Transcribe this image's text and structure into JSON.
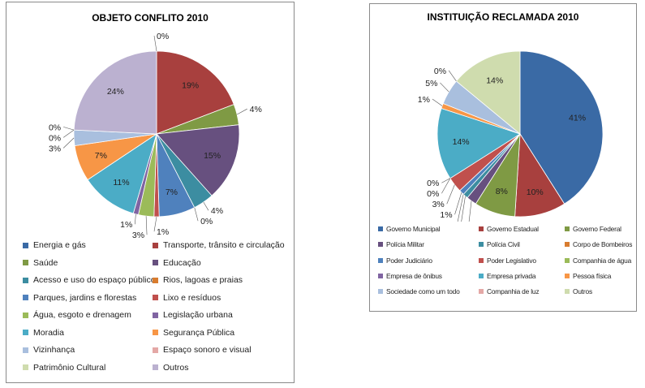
{
  "chart_data": [
    {
      "type": "pie",
      "title": "OBJETO CONFLITO 2010",
      "legend_position": "bottom",
      "slices": [
        {
          "label": "Energia e gás",
          "value": 0,
          "value_label": "0%",
          "color": "#3a6aa5"
        },
        {
          "label": "Transporte, trânsito e circulação",
          "value": 19,
          "value_label": "19%",
          "color": "#a8403e"
        },
        {
          "label": "Saúde",
          "value": 4,
          "value_label": "4%",
          "color": "#7f9a44"
        },
        {
          "label": "Educação",
          "value": 15,
          "value_label": "15%",
          "color": "#67507f"
        },
        {
          "label": "Acesso e uso do espaço público",
          "value": 4,
          "value_label": "4%",
          "color": "#3c8da1"
        },
        {
          "label": "Rios, lagoas e praias",
          "value": 0,
          "value_label": "0%",
          "color": "#d87c2f"
        },
        {
          "label": "Parques, jardins e florestas",
          "value": 7,
          "value_label": "7%",
          "color": "#4f81bd"
        },
        {
          "label": "Lixo e resíduos",
          "value": 1,
          "value_label": "1%",
          "color": "#c0504d"
        },
        {
          "label": "Água, esgoto e drenagem",
          "value": 3,
          "value_label": "3%",
          "color": "#9bbb59"
        },
        {
          "label": "Legislação urbana",
          "value": 1,
          "value_label": "1%",
          "color": "#8064a2"
        },
        {
          "label": "Moradia",
          "value": 11,
          "value_label": "11%",
          "color": "#4bacc6"
        },
        {
          "label": "Segurança Pública",
          "value": 7,
          "value_label": "7%",
          "color": "#f79646"
        },
        {
          "label": "Vizinhança",
          "value": 3,
          "value_label": "3%",
          "color": "#a9bfde"
        },
        {
          "label": "Espaço sonoro e visual",
          "value": 0,
          "value_label": "0%",
          "color": "#e4a8a6"
        },
        {
          "label": "Patrimônio Cultural",
          "value": 0,
          "value_label": "0%",
          "color": "#cfdcae"
        },
        {
          "label": "Outros",
          "value": 24,
          "value_label": "24%",
          "color": "#bbb1d0"
        }
      ]
    },
    {
      "type": "pie",
      "title": "INSTITUIÇÃO  RECLAMADA 2010",
      "legend_position": "bottom",
      "slices": [
        {
          "label": "Governo Municipal",
          "value": 41,
          "value_label": "41%",
          "color": "#3a6aa5"
        },
        {
          "label": "Governo Estadual",
          "value": 10,
          "value_label": "10%",
          "color": "#a8403e"
        },
        {
          "label": "Governo Federal",
          "value": 8,
          "value_label": "8%",
          "color": "#7f9a44"
        },
        {
          "label": "Polícia Militar",
          "value": 2,
          "value_label": "2%",
          "color": "#67507f"
        },
        {
          "label": "Polícia Civil",
          "value": 1,
          "value_label": "1%",
          "color": "#3c8da1"
        },
        {
          "label": "Corpo de Bombeiros",
          "value": 0,
          "value_label": "0%",
          "color": "#d87c2f"
        },
        {
          "label": "Poder Judiciário",
          "value": 1,
          "value_label": "1%",
          "color": "#4f81bd"
        },
        {
          "label": "Poder Legislativo",
          "value": 3,
          "value_label": "3%",
          "color": "#c0504d"
        },
        {
          "label": "Companhia de água",
          "value": 0,
          "value_label": "0%",
          "color": "#9bbb59"
        },
        {
          "label": "Empresa de ônibus",
          "value": 0,
          "value_label": "0%",
          "color": "#8064a2"
        },
        {
          "label": "Empresa privada",
          "value": 14,
          "value_label": "14%",
          "color": "#4bacc6"
        },
        {
          "label": "Pessoa física",
          "value": 1,
          "value_label": "1%",
          "color": "#f79646"
        },
        {
          "label": "Sociedade como um todo",
          "value": 5,
          "value_label": "5%",
          "color": "#a9bfde"
        },
        {
          "label": "Companhia de luz",
          "value": 0,
          "value_label": "0%",
          "color": "#e4a8a6"
        },
        {
          "label": "Outros",
          "value": 14,
          "value_label": "14%",
          "color": "#cfdcae"
        }
      ]
    }
  ]
}
